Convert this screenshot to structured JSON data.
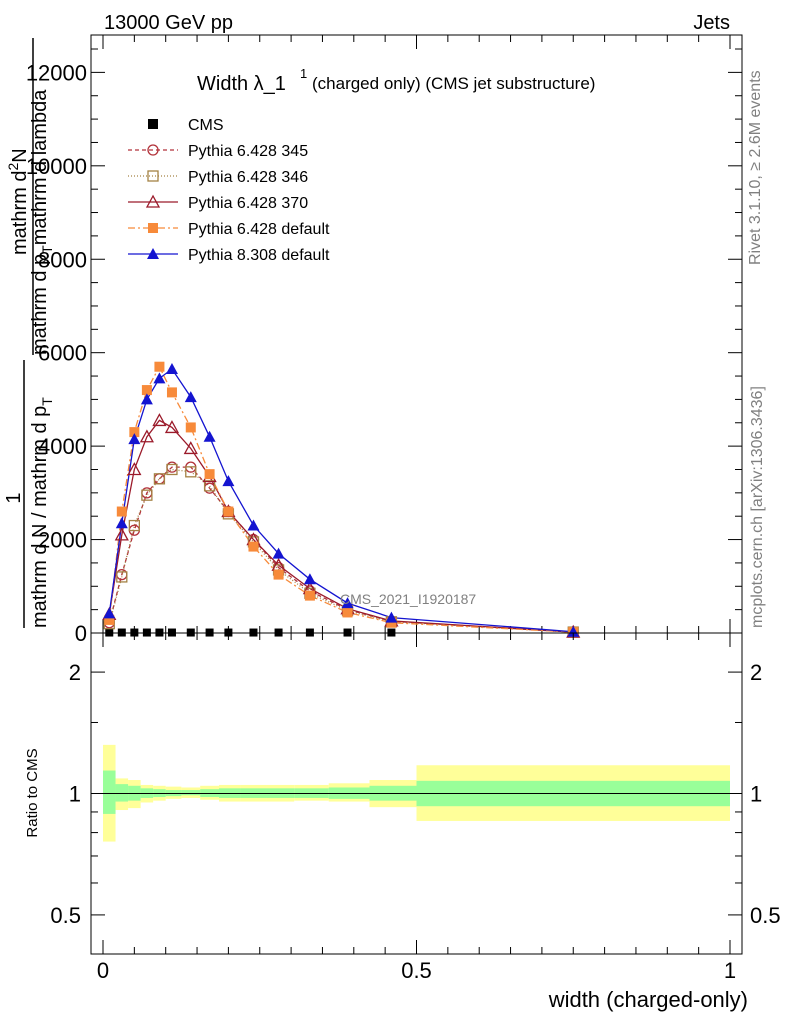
{
  "header": {
    "left": "13000 GeV pp",
    "right": "Jets",
    "side_rivet": "Rivet 3.1.10, ≥ 2.6M events",
    "side_mcplots": "mcplots.cern.ch [arXiv:1306.3436]",
    "watermark": "CMS_2021_I1920187"
  },
  "colors": {
    "cms": "#000000",
    "py345": "#b2323a",
    "py346": "#a48245",
    "py370": "#9b1a2a",
    "pydef": "#f78a3a",
    "py8": "#1414d0",
    "band_outer": "#ffff99",
    "band_inner": "#99ff99"
  },
  "chart_data": [
    {
      "type": "line",
      "title": "Width λ_1",
      "title_sup": "1",
      "title_suffix": "(charged only) (CMS jet substructure)",
      "ylabel_parts": [
        "1",
        "mathrm d N / mathrm d p",
        "T",
        "mathrm d p",
        "T",
        "mathrm d lambda",
        "mathrm d",
        "2",
        "N"
      ],
      "ylabel_numerator": "mathrm d",
      "ylabel_numerator_sup": "2",
      "ylabel_numerator_end": "N",
      "ylabel_denominator": "mathrm d p",
      "ylabel_denominator_sub": "T",
      "ylabel_denominator_end": "mathrm d lambda",
      "ylabel_prefix": "1",
      "ylabel_prefix_den": "mathrm d N / mathrm d p",
      "ylabel_prefix_den_sub": "T",
      "yticks": [
        "0",
        "2000",
        "4000",
        "6000",
        "8000",
        "10000",
        "12000"
      ],
      "ylim": [
        0,
        12800
      ],
      "xlim": [
        -0.02,
        1.0
      ],
      "x": [
        0.01,
        0.03,
        0.05,
        0.07,
        0.09,
        0.11,
        0.14,
        0.17,
        0.2,
        0.24,
        0.28,
        0.33,
        0.39,
        0.46,
        0.75
      ],
      "series": [
        {
          "name": "CMS",
          "color_key": "cms",
          "marker": "square-filled",
          "values": [
            10,
            10,
            10,
            10,
            10,
            10,
            10,
            10,
            10,
            10,
            10,
            10,
            10,
            10,
            10
          ]
        },
        {
          "name": "Pythia 6.428 345",
          "color_key": "py345",
          "marker": "circle-open",
          "dash": "4,3",
          "values": [
            220,
            1250,
            2200,
            3000,
            3300,
            3550,
            3550,
            3100,
            2600,
            2000,
            1400,
            900,
            500,
            250,
            20
          ]
        },
        {
          "name": "Pythia 6.428 346",
          "color_key": "py346",
          "marker": "square-open",
          "dash": "1,2",
          "values": [
            200,
            1200,
            2300,
            2950,
            3300,
            3500,
            3450,
            3150,
            2550,
            1950,
            1350,
            850,
            480,
            240,
            20
          ]
        },
        {
          "name": "Pythia 6.428 370",
          "color_key": "py370",
          "marker": "triangle-open",
          "dash": "",
          "values": [
            400,
            2100,
            3500,
            4200,
            4550,
            4400,
            3950,
            3350,
            2600,
            2000,
            1450,
            950,
            520,
            260,
            20
          ]
        },
        {
          "name": "Pythia 6.428 default",
          "color_key": "pydef",
          "marker": "square-filled",
          "dash": "7,3,2,3",
          "values": [
            280,
            2600,
            4300,
            5200,
            5700,
            5150,
            4400,
            3400,
            2600,
            1850,
            1250,
            800,
            440,
            220,
            20
          ]
        },
        {
          "name": "Pythia 8.308 default",
          "color_key": "py8",
          "marker": "triangle-filled",
          "dash": "",
          "values": [
            420,
            2350,
            4150,
            5000,
            5450,
            5650,
            5050,
            4200,
            3250,
            2300,
            1700,
            1150,
            640,
            330,
            25
          ]
        }
      ]
    },
    {
      "type": "area",
      "ylabel": "Ratio to CMS",
      "xlabel": "width (charged-only)",
      "xticks": [
        "0",
        "0.5",
        "1"
      ],
      "yticks_left": [
        "0.5",
        "1",
        "2"
      ],
      "yticks_right": [
        "0.5",
        "1",
        "2"
      ],
      "ylim": [
        0.4,
        2.5
      ],
      "log": true,
      "bins": [
        0.0,
        0.02,
        0.04,
        0.06,
        0.08,
        0.1,
        0.125,
        0.155,
        0.185,
        0.22,
        0.26,
        0.305,
        0.36,
        0.425,
        0.5,
        1.0
      ],
      "band_outer_lo": [
        0.76,
        0.91,
        0.92,
        0.95,
        0.96,
        0.97,
        0.975,
        0.965,
        0.955,
        0.955,
        0.955,
        0.96,
        0.955,
        0.925,
        0.855
      ],
      "band_outer_hi": [
        1.32,
        1.09,
        1.08,
        1.05,
        1.045,
        1.04,
        1.035,
        1.045,
        1.05,
        1.05,
        1.05,
        1.05,
        1.06,
        1.08,
        1.175
      ],
      "band_inner_lo": [
        0.89,
        0.955,
        0.96,
        0.975,
        0.98,
        0.985,
        0.99,
        0.98,
        0.975,
        0.975,
        0.975,
        0.975,
        0.97,
        0.96,
        0.93
      ],
      "band_inner_hi": [
        1.14,
        1.055,
        1.045,
        1.03,
        1.025,
        1.02,
        1.02,
        1.025,
        1.03,
        1.03,
        1.03,
        1.03,
        1.035,
        1.045,
        1.075
      ],
      "reference": 1
    }
  ]
}
